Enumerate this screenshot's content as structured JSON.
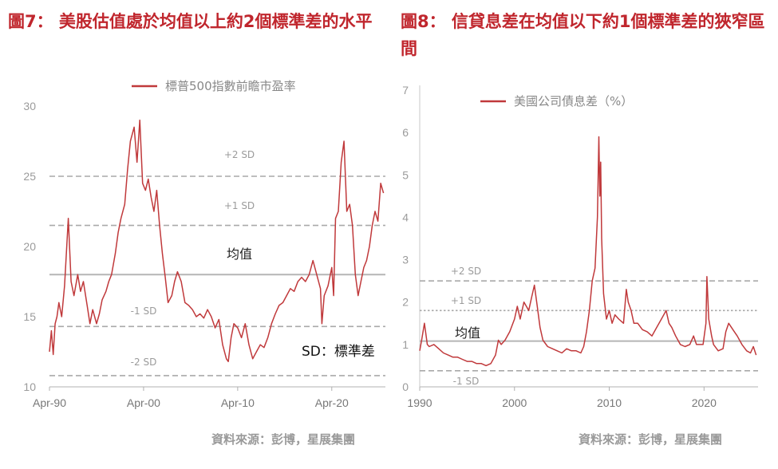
{
  "figures": [
    {
      "title": "圖7： 美股估值處於均值以上約2個標準差的水平",
      "source": "資料來源：彭博，星展集團"
    },
    {
      "title": "圖8： 信貸息差在均值以下約1個標準差的狹窄區間",
      "source": "資料來源：彭博，星展集團"
    }
  ],
  "chart_data": [
    {
      "type": "line",
      "title": "",
      "xlabel": "",
      "ylabel": "",
      "ylim": [
        10,
        30
      ],
      "y_ticks": [
        "10",
        "15",
        "20",
        "25",
        "30"
      ],
      "x_ticks": [
        "Apr-90",
        "Apr-00",
        "Apr-10",
        "Apr-20"
      ],
      "x_tick_years": [
        1990,
        2000,
        2010,
        2020
      ],
      "xlim": [
        1990,
        2025.7
      ],
      "grid": false,
      "legend": "top",
      "series": [
        {
          "name": "標普500指數前瞻市盈率",
          "color": "#c0393b",
          "x": [
            1990.0,
            1990.2,
            1990.4,
            1990.6,
            1990.8,
            1991.0,
            1991.3,
            1991.6,
            1992.0,
            1992.3,
            1992.6,
            1993.0,
            1993.3,
            1993.6,
            1994.0,
            1994.3,
            1994.6,
            1995.0,
            1995.3,
            1995.6,
            1996.0,
            1996.3,
            1996.6,
            1997.0,
            1997.3,
            1997.6,
            1998.0,
            1998.3,
            1998.6,
            1999.0,
            1999.3,
            1999.6,
            1999.9,
            2000.2,
            2000.5,
            2000.8,
            2001.1,
            2001.4,
            2001.7,
            2002.0,
            2002.3,
            2002.6,
            2003.0,
            2003.3,
            2003.6,
            2004.0,
            2004.4,
            2004.8,
            2005.2,
            2005.6,
            2006.0,
            2006.4,
            2006.8,
            2007.2,
            2007.6,
            2008.0,
            2008.4,
            2008.8,
            2009.0,
            2009.3,
            2009.6,
            2010.0,
            2010.4,
            2010.8,
            2011.2,
            2011.6,
            2012.0,
            2012.4,
            2012.8,
            2013.2,
            2013.6,
            2014.0,
            2014.4,
            2014.8,
            2015.2,
            2015.6,
            2016.0,
            2016.4,
            2016.8,
            2017.2,
            2017.6,
            2018.0,
            2018.4,
            2018.8,
            2018.95,
            2019.2,
            2019.6,
            2020.0,
            2020.2,
            2020.4,
            2020.7,
            2021.0,
            2021.3,
            2021.6,
            2021.9,
            2022.2,
            2022.5,
            2022.8,
            2023.1,
            2023.4,
            2023.7,
            2024.0,
            2024.3,
            2024.6,
            2024.9,
            2025.2,
            2025.5
          ],
          "values": [
            12.5,
            14.0,
            12.3,
            14.5,
            15.0,
            16.0,
            15.0,
            17.2,
            22.0,
            17.5,
            16.5,
            18.0,
            16.8,
            17.5,
            15.8,
            14.5,
            15.5,
            14.5,
            15.2,
            16.2,
            16.8,
            17.5,
            18.0,
            19.5,
            21.0,
            22.0,
            23.0,
            25.5,
            27.5,
            28.5,
            26.0,
            29.0,
            24.5,
            24.0,
            24.8,
            23.5,
            22.5,
            24.0,
            21.5,
            19.5,
            17.8,
            16.0,
            16.5,
            17.5,
            18.2,
            17.5,
            16.0,
            15.8,
            15.5,
            15.0,
            15.2,
            14.9,
            15.5,
            15.0,
            14.2,
            14.8,
            13.0,
            12.0,
            11.8,
            13.5,
            14.5,
            14.2,
            13.5,
            14.5,
            13.0,
            12.0,
            12.5,
            13.0,
            12.8,
            13.5,
            14.5,
            15.2,
            15.8,
            16.0,
            16.5,
            17.0,
            16.8,
            17.5,
            17.8,
            17.5,
            18.0,
            19.0,
            18.0,
            17.0,
            14.5,
            16.5,
            17.2,
            18.5,
            16.5,
            22.0,
            22.5,
            26.0,
            27.5,
            22.5,
            23.0,
            21.5,
            18.0,
            16.5,
            17.5,
            18.5,
            19.0,
            20.0,
            21.5,
            22.5,
            21.8,
            24.5,
            23.8
          ]
        }
      ],
      "reference_lines": [
        {
          "label": "+2 SD",
          "value": 25.0,
          "style": "dashed"
        },
        {
          "label": "+1 SD",
          "value": 21.5,
          "style": "dashed"
        },
        {
          "label": "均值",
          "value": 18.0,
          "style": "solid"
        },
        {
          "label": "-1 SD",
          "value": 14.3,
          "style": "dashed"
        },
        {
          "label": "-2 SD",
          "value": 10.8,
          "style": "dashed"
        }
      ],
      "annotation": "SD：標準差"
    },
    {
      "type": "line",
      "title": "",
      "xlabel": "",
      "ylabel": "",
      "ylim": [
        0,
        7
      ],
      "y_ticks": [
        "0",
        "1",
        "2",
        "3",
        "4",
        "5",
        "6",
        "7"
      ],
      "x_ticks": [
        "1990",
        "2000",
        "2010",
        "2020"
      ],
      "x_tick_years": [
        1990,
        2000,
        2010,
        2020
      ],
      "xlim": [
        1990,
        2025.7
      ],
      "grid": false,
      "legend": "top",
      "series": [
        {
          "name": "美國公司債息差（%）",
          "color": "#c0393b",
          "x": [
            1990.0,
            1990.2,
            1990.5,
            1990.8,
            1991.0,
            1991.5,
            1992.0,
            1992.5,
            1993.0,
            1993.5,
            1994.0,
            1994.5,
            1995.0,
            1995.5,
            1996.0,
            1996.5,
            1997.0,
            1997.5,
            1998.0,
            1998.3,
            1998.6,
            1999.0,
            1999.5,
            2000.0,
            2000.3,
            2000.6,
            2001.0,
            2001.5,
            2001.8,
            2002.1,
            2002.4,
            2002.7,
            2003.0,
            2003.5,
            2004.0,
            2004.5,
            2005.0,
            2005.5,
            2006.0,
            2006.5,
            2007.0,
            2007.3,
            2007.6,
            2007.9,
            2008.2,
            2008.5,
            2008.75,
            2008.9,
            2009.0,
            2009.1,
            2009.2,
            2009.4,
            2009.7,
            2010.0,
            2010.3,
            2010.6,
            2011.0,
            2011.5,
            2011.8,
            2012.0,
            2012.3,
            2012.6,
            2013.0,
            2013.5,
            2014.0,
            2014.5,
            2015.0,
            2015.5,
            2016.0,
            2016.3,
            2016.6,
            2017.0,
            2017.5,
            2018.0,
            2018.5,
            2018.9,
            2019.2,
            2019.6,
            2019.9,
            2020.2,
            2020.3,
            2020.5,
            2020.8,
            2021.0,
            2021.5,
            2022.0,
            2022.3,
            2022.6,
            2022.9,
            2023.2,
            2023.5,
            2024.0,
            2024.5,
            2024.9,
            2025.2,
            2025.5
          ],
          "values": [
            0.85,
            1.1,
            1.5,
            1.0,
            0.95,
            1.0,
            0.9,
            0.8,
            0.75,
            0.7,
            0.7,
            0.65,
            0.6,
            0.6,
            0.55,
            0.55,
            0.5,
            0.55,
            0.75,
            1.1,
            1.0,
            1.1,
            1.3,
            1.6,
            1.9,
            1.6,
            2.0,
            1.8,
            2.1,
            2.4,
            1.9,
            1.4,
            1.1,
            0.95,
            0.9,
            0.85,
            0.8,
            0.9,
            0.85,
            0.85,
            0.8,
            0.95,
            1.3,
            1.8,
            2.5,
            2.8,
            4.0,
            5.9,
            4.5,
            5.3,
            3.5,
            2.2,
            1.6,
            1.8,
            1.5,
            1.7,
            1.6,
            1.5,
            2.3,
            2.0,
            1.8,
            1.5,
            1.5,
            1.35,
            1.3,
            1.2,
            1.4,
            1.6,
            1.8,
            1.5,
            1.4,
            1.2,
            1.0,
            0.95,
            1.0,
            1.2,
            1.0,
            1.0,
            1.0,
            1.5,
            2.6,
            1.6,
            1.2,
            1.0,
            0.85,
            0.9,
            1.3,
            1.5,
            1.4,
            1.3,
            1.2,
            1.0,
            0.85,
            0.8,
            0.95,
            0.75
          ]
        }
      ],
      "reference_lines": [
        {
          "label": "+2 SD",
          "value": 2.5,
          "style": "dashed"
        },
        {
          "label": "+1 SD",
          "value": 1.8,
          "style": "dotted"
        },
        {
          "label": "均值",
          "value": 1.08,
          "style": "solid"
        },
        {
          "label": "-1 SD",
          "value": 0.38,
          "style": "dashed"
        }
      ]
    }
  ]
}
